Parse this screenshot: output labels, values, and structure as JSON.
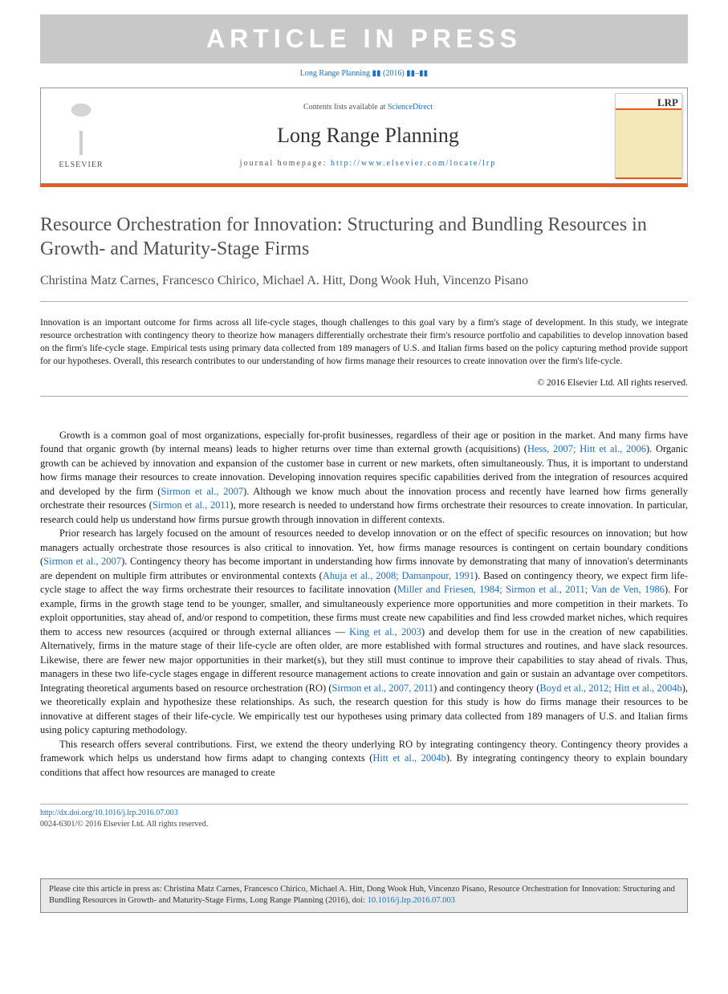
{
  "banner": "ARTICLE IN PRESS",
  "journal_ref": "Long Range Planning ▮▮ (2016) ▮▮–▮▮",
  "header": {
    "elsevier": "ELSEVIER",
    "contents_prefix": "Contents lists available at ",
    "contents_link": "ScienceDirect",
    "journal_name": "Long Range Planning",
    "homepage_prefix": "journal homepage: ",
    "homepage_url": "http://www.elsevier.com/locate/lrp",
    "cover_acronym": "LRP"
  },
  "title": "Resource Orchestration for Innovation: Structuring and Bundling Resources in Growth- and Maturity-Stage Firms",
  "authors": "Christina Matz Carnes, Francesco Chirico, Michael A. Hitt, Dong Wook Huh, Vincenzo Pisano",
  "abstract": "Innovation is an important outcome for firms across all life-cycle stages, though challenges to this goal vary by a firm's stage of development. In this study, we integrate resource orchestration with contingency theory to theorize how managers differentially orchestrate their firm's resource portfolio and capabilities to develop innovation based on the firm's life-cycle stage. Empirical tests using primary data collected from 189 managers of U.S. and Italian firms based on the policy capturing method provide support for our hypotheses. Overall, this research contributes to our understanding of how firms manage their resources to create innovation over the firm's life-cycle.",
  "copyright": "© 2016 Elsevier Ltd. All rights reserved.",
  "paragraphs": {
    "p1_a": "Growth is a common goal of most organizations, especially for-profit businesses, regardless of their age or position in the market. And many firms have found that organic growth (by internal means) leads to higher returns over time than external growth (acquisitions) (",
    "p1_ref1": "Hess, 2007; Hitt et al., 2006",
    "p1_b": "). Organic growth can be achieved by innovation and expansion of the customer base in current or new markets, often simultaneously. Thus, it is important to understand how firms manage their resources to create innovation. Developing innovation requires specific capabilities derived from the integration of resources acquired and developed by the firm (",
    "p1_ref2": "Sirmon et al., 2007",
    "p1_c": "). Although we know much about the innovation process and recently have learned how firms generally orchestrate their resources (",
    "p1_ref3": "Sirmon et al., 2011",
    "p1_d": "), more research is needed to understand how firms orchestrate their resources to create innovation. In particular, research could help us understand how firms pursue growth through innovation in different contexts.",
    "p2_a": "Prior research has largely focused on the amount of resources needed to develop innovation or on the effect of specific resources on innovation; but how managers actually orchestrate those resources is also critical to innovation. Yet, how firms manage resources is contingent on certain boundary conditions (",
    "p2_ref1": "Sirmon et al., 2007",
    "p2_b": "). Contingency theory has become important in understanding how firms innovate by demonstrating that many of innovation's determinants are dependent on multiple firm attributes or environmental contexts (",
    "p2_ref2": "Ahuja et al., 2008; Damanpour, 1991",
    "p2_c": "). Based on contingency theory, we expect firm life-cycle stage to affect the way firms orchestrate their resources to facilitate innovation (",
    "p2_ref3": "Miller and Friesen, 1984; Sirmon et al., 2011; Van de Ven, 1986",
    "p2_d": "). For example, firms in the growth stage tend to be younger, smaller, and simultaneously experience more opportunities and more competition in their markets. To exploit opportunities, stay ahead of, and/or respond to competition, these firms must create new capabilities and find less crowded market niches, which requires them to access new resources (acquired or through external alliances — ",
    "p2_ref4": "King et al., 2003",
    "p2_e": ") and develop them for use in the creation of new capabilities. Alternatively, firms in the mature stage of their life-cycle are often older, are more established with formal structures and routines, and have slack resources. Likewise, there are fewer new major opportunities in their market(s), but they still must continue to improve their capabilities to stay ahead of rivals. Thus, managers in these two life-cycle stages engage in different resource management actions to create innovation and gain or sustain an advantage over competitors. Integrating theoretical arguments based on resource orchestration (RO) (",
    "p2_ref5": "Sirmon et al., 2007, 2011",
    "p2_f": ") and contingency theory (",
    "p2_ref6": "Boyd et al., 2012; Hitt et al., 2004b",
    "p2_g": "), we theoretically explain and hypothesize these relationships. As such, the research question for this study is how do firms manage their resources to be innovative at different stages of their life-cycle. We empirically test our hypotheses using primary data collected from 189 managers of U.S. and Italian firms using policy capturing methodology.",
    "p3_a": "This research offers several contributions. First, we extend the theory underlying RO by integrating contingency theory. Contingency theory provides a framework which helps us understand how firms adapt to changing contexts (",
    "p3_ref1": "Hitt et al., 2004b",
    "p3_b": "). By integrating contingency theory to explain boundary conditions that affect how resources are managed to create"
  },
  "doi": {
    "url": "http://dx.doi.org/10.1016/j.lrp.2016.07.003",
    "issn_line": "0024-6301/© 2016 Elsevier Ltd. All rights reserved."
  },
  "cite_box": {
    "prefix": "Please cite this article in press as: Christina Matz Carnes, Francesco Chirico, Michael A. Hitt, Dong Wook Huh, Vincenzo Pisano, Resource Orchestration for Innovation: Structuring and Bundling Resources in Growth- and Maturity-Stage Firms, Long Range Planning (2016), doi: ",
    "doi": "10.1016/j.lrp.2016.07.003"
  }
}
